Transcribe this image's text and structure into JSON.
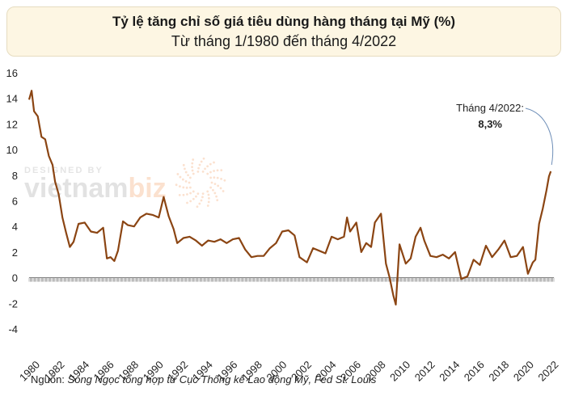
{
  "chart_data": {
    "type": "line",
    "title": "Tỷ lệ tăng chỉ số giá tiêu dùng hàng tháng tại Mỹ (%)",
    "subtitle": "Từ tháng 1/1980 đến tháng 4/2022",
    "ylim": [
      -4,
      16
    ],
    "y_ticks": [
      "16",
      "14",
      "12",
      "10",
      "8",
      "6",
      "4",
      "2",
      "0",
      "-2",
      "-4"
    ],
    "x_ticks": [
      "1980",
      "1982",
      "1984",
      "1986",
      "1988",
      "1990",
      "1992",
      "1994",
      "1996",
      "1998",
      "2000",
      "2002",
      "2004",
      "2006",
      "2008",
      "2010",
      "2012",
      "2014",
      "2016",
      "2018",
      "2020",
      "2022"
    ],
    "grid": false,
    "line_color": "#8b4513",
    "series": [
      {
        "x": [
          1980.0,
          1980.2,
          1980.4,
          1980.7,
          1981.0,
          1981.3,
          1981.6,
          1981.9,
          1982.1,
          1982.4,
          1982.7,
          1983.0,
          1983.3,
          1983.6,
          1984.0,
          1984.5,
          1985.0,
          1985.5,
          1986.0,
          1986.3,
          1986.6,
          1986.9,
          1987.2,
          1987.6,
          1988.0,
          1988.5,
          1989.0,
          1989.5,
          1990.0,
          1990.5,
          1990.9,
          1991.3,
          1991.7,
          1992.0,
          1992.5,
          1993.0,
          1993.5,
          1994.0,
          1994.5,
          1995.0,
          1995.5,
          1996.0,
          1996.5,
          1997.0,
          1997.5,
          1998.0,
          1998.5,
          1999.0,
          1999.5,
          2000.0,
          2000.5,
          2001.0,
          2001.5,
          2001.9,
          2002.5,
          2003.0,
          2003.5,
          2004.0,
          2004.5,
          2005.0,
          2005.5,
          2005.75,
          2006.0,
          2006.5,
          2006.9,
          2007.3,
          2007.7,
          2008.0,
          2008.5,
          2008.9,
          2009.2,
          2009.5,
          2009.7,
          2010.0,
          2010.5,
          2010.9,
          2011.3,
          2011.7,
          2012.0,
          2012.5,
          2013.0,
          2013.5,
          2014.0,
          2014.5,
          2015.0,
          2015.5,
          2016.0,
          2016.5,
          2017.0,
          2017.5,
          2018.0,
          2018.5,
          2019.0,
          2019.5,
          2020.0,
          2020.4,
          2020.8,
          2021.0,
          2021.3,
          2021.6,
          2021.9,
          2022.1,
          2022.25
        ],
        "values": [
          13.9,
          14.6,
          13.0,
          12.6,
          11.0,
          10.8,
          9.5,
          8.8,
          7.5,
          6.5,
          4.7,
          3.5,
          2.4,
          2.8,
          4.2,
          4.3,
          3.6,
          3.5,
          3.9,
          1.5,
          1.6,
          1.3,
          2.1,
          4.4,
          4.1,
          4.0,
          4.7,
          5.0,
          4.9,
          4.7,
          6.3,
          4.8,
          3.8,
          2.7,
          3.1,
          3.2,
          2.9,
          2.5,
          2.9,
          2.8,
          3.0,
          2.7,
          3.0,
          3.1,
          2.2,
          1.6,
          1.7,
          1.7,
          2.3,
          2.7,
          3.6,
          3.7,
          3.3,
          1.6,
          1.2,
          2.3,
          2.1,
          1.9,
          3.2,
          3.0,
          3.2,
          4.7,
          3.6,
          4.3,
          2.0,
          2.7,
          2.4,
          4.3,
          5.0,
          1.1,
          0.0,
          -1.4,
          -2.1,
          2.6,
          1.1,
          1.5,
          3.2,
          3.9,
          2.9,
          1.7,
          1.6,
          1.8,
          1.5,
          2.0,
          -0.1,
          0.1,
          1.4,
          1.0,
          2.5,
          1.6,
          2.2,
          2.9,
          1.6,
          1.7,
          2.4,
          0.3,
          1.2,
          1.4,
          4.2,
          5.4,
          6.8,
          7.9,
          8.3
        ]
      }
    ],
    "annotation": {
      "label": "Tháng 4/2022:",
      "value": "8,3%",
      "x": 2022.25,
      "y": 8.3
    }
  },
  "source": {
    "label": "Nguồn:",
    "text": "Song Ngọc tổng hợp từ Cục Thống kê Lao động Mỹ, Fed St. Louis"
  },
  "watermark": {
    "line1": "DESIGNED BY",
    "brand_part1": "vietnam",
    "brand_part2": "biz"
  }
}
